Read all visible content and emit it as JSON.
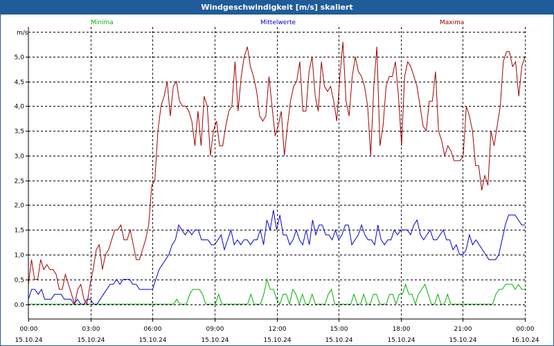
{
  "window": {
    "title": "Windgeschwindigkeit [m/s] skaliert"
  },
  "colors": {
    "titlebar": "#1f5c99",
    "minima": "#00b000",
    "mittelwerte": "#0000cc",
    "maxima": "#a00000",
    "grid": "#000000"
  },
  "chart_data": {
    "type": "line",
    "ylabel": "m/s",
    "ylim": [
      -0.3,
      5.6
    ],
    "yticks": [
      "0.0",
      "0,5",
      "1,0",
      "1,5",
      "2,0",
      "2,5",
      "3,0",
      "3,5",
      "4,0",
      "4,5",
      "5,0"
    ],
    "ytick_values": [
      0,
      0.5,
      1,
      1.5,
      2,
      2.5,
      3,
      3.5,
      4,
      4.5,
      5
    ],
    "xlim": [
      0,
      24
    ],
    "xticks": [
      {
        "time": "00:00",
        "date": "15.10.24",
        "hour": 0
      },
      {
        "time": "03:00",
        "date": "15.10.24",
        "hour": 3
      },
      {
        "time": "06:00",
        "date": "15.10.24",
        "hour": 6
      },
      {
        "time": "09:00",
        "date": "15.10.24",
        "hour": 9
      },
      {
        "time": "12:00",
        "date": "15.10.24",
        "hour": 12
      },
      {
        "time": "15:00",
        "date": "15.10.24",
        "hour": 15
      },
      {
        "time": "18:00",
        "date": "15.10.24",
        "hour": 18
      },
      {
        "time": "21:00",
        "date": "15.10.24",
        "hour": 21
      },
      {
        "time": "00:00",
        "date": "16.10.24",
        "hour": 24
      }
    ],
    "grid": true,
    "legend": "top",
    "x_step_hours": 0.1667,
    "series": [
      {
        "name": "Minima",
        "values": [
          0.0,
          0.0,
          0.0,
          0.0,
          0.0,
          0.0,
          0.0,
          0.0,
          0.0,
          0.0,
          0.0,
          0.0,
          0.0,
          0.0,
          0.0,
          0.0,
          0.0,
          0.0,
          0.0,
          0.0,
          0.0,
          0.0,
          0.0,
          0.0,
          0.0,
          0.0,
          0.0,
          0.0,
          0.0,
          0.0,
          0.0,
          0.0,
          0.0,
          0.0,
          0.0,
          0.0,
          0.0,
          0.0,
          0.0,
          0.0,
          0.0,
          0.0,
          0.0,
          0.0,
          0.0,
          0.0,
          0.1,
          0.0,
          0.0,
          0.0,
          0.2,
          0.3,
          0.3,
          0.3,
          0.2,
          0.0,
          0.0,
          0.0,
          0.0,
          0.2,
          0.0,
          0.0,
          0.0,
          0.0,
          0.0,
          0.0,
          0.0,
          0.0,
          0.0,
          0.2,
          0.0,
          0.0,
          0.0,
          0.2,
          0.5,
          0.3,
          0.3,
          0.1,
          0.0,
          0.2,
          0.2,
          0.0,
          0.3,
          0.2,
          0.0,
          0.2,
          0.0,
          0.0,
          0.2,
          0.0,
          0.0,
          0.0,
          0.0,
          0.2,
          0.3,
          0.0,
          0.0,
          0.0,
          0.0,
          0.0,
          0.0,
          0.2,
          0.0,
          0.0,
          0.2,
          0.0,
          0.0,
          0.2,
          0.2,
          0.0,
          0.0,
          0.0,
          0.2,
          0.2,
          0.0,
          0.2,
          0.2,
          0.4,
          0.2,
          0.2,
          0.0,
          0.2,
          0.3,
          0.4,
          0.2,
          0.0,
          0.0,
          0.2,
          0.0,
          0.0,
          0.2,
          0.0,
          0.0,
          0.0,
          0.0,
          0.0,
          0.0,
          0.0,
          0.0,
          0.0,
          0.0,
          0.0,
          0.0,
          0.0,
          0.0,
          0.2,
          0.3,
          0.3,
          0.4,
          0.4,
          0.4,
          0.3,
          0.4,
          0.3,
          0.3
        ]
      },
      {
        "name": "Mittelwerte",
        "values": [
          0.1,
          0.3,
          0.3,
          0.2,
          0.3,
          0.1,
          0.1,
          0.1,
          0.2,
          0.2,
          0.2,
          0.1,
          0.1,
          0.1,
          0.0,
          0.1,
          0.0,
          0.0,
          0.1,
          0.1,
          0.0,
          0.0,
          0.1,
          0.2,
          0.3,
          0.4,
          0.4,
          0.5,
          0.4,
          0.5,
          0.5,
          0.5,
          0.4,
          0.4,
          0.3,
          0.3,
          0.3,
          0.3,
          0.3,
          0.5,
          0.7,
          0.8,
          0.9,
          1.0,
          1.2,
          1.3,
          1.6,
          1.5,
          1.4,
          1.5,
          1.4,
          1.5,
          1.5,
          1.3,
          1.3,
          1.3,
          1.2,
          1.2,
          1.3,
          1.4,
          1.1,
          1.3,
          1.5,
          1.2,
          1.3,
          1.2,
          1.3,
          1.3,
          1.2,
          1.3,
          1.3,
          1.5,
          1.2,
          1.7,
          1.5,
          1.9,
          1.5,
          1.8,
          1.4,
          1.4,
          1.2,
          1.3,
          1.5,
          1.3,
          1.2,
          1.5,
          1.2,
          1.7,
          1.4,
          1.6,
          1.6,
          1.4,
          1.4,
          1.3,
          1.5,
          1.3,
          1.4,
          1.6,
          1.6,
          1.2,
          1.3,
          1.4,
          1.6,
          1.4,
          1.3,
          1.3,
          1.2,
          1.6,
          1.3,
          1.2,
          1.3,
          1.3,
          1.5,
          1.4,
          1.5,
          1.5,
          1.5,
          1.4,
          1.6,
          1.7,
          1.4,
          1.3,
          1.4,
          1.5,
          1.3,
          1.3,
          1.4,
          1.5,
          1.3,
          1.3,
          1.1,
          1.2,
          1.0,
          1.0,
          1.1,
          1.4,
          1.2,
          1.3,
          1.2,
          1.1,
          1.0,
          0.9,
          0.9,
          0.9,
          1.0,
          1.3,
          1.6,
          1.8,
          1.8,
          1.8,
          1.7,
          1.6,
          1.6
        ]
      },
      {
        "name": "Maxima",
        "values": [
          0.4,
          0.9,
          0.5,
          0.5,
          0.9,
          0.7,
          0.8,
          0.7,
          0.7,
          0.6,
          0.3,
          0.3,
          0.6,
          0.4,
          0.2,
          0.0,
          0.3,
          0.4,
          0.1,
          0.0,
          0.4,
          0.7,
          1.1,
          1.2,
          0.7,
          1.0,
          1.1,
          1.3,
          1.5,
          1.5,
          1.6,
          1.3,
          1.3,
          1.5,
          1.2,
          0.9,
          0.9,
          1.1,
          1.3,
          1.6,
          2.4,
          2.5,
          3.5,
          4.0,
          4.2,
          4.5,
          3.8,
          4.4,
          4.5,
          4.1,
          4.0,
          4.0,
          3.9,
          3.7,
          3.2,
          3.9,
          3.2,
          4.2,
          4.0,
          3.0,
          3.5,
          3.7,
          3.2,
          3.2,
          3.6,
          3.9,
          4.0,
          4.9,
          3.9,
          4.6,
          5.0,
          5.2,
          4.8,
          4.6,
          4.3,
          3.8,
          3.7,
          3.8,
          4.6,
          4.0,
          3.4,
          3.6,
          3.9,
          3.0,
          3.6,
          4.1,
          4.4,
          4.5,
          4.9,
          3.9,
          3.9,
          4.7,
          5.0,
          4.2,
          3.9,
          4.9,
          4.4,
          4.3,
          4.4,
          4.1,
          3.7,
          4.6,
          5.3,
          4.1,
          3.8,
          4.6,
          5.0,
          4.7,
          4.6,
          4.4,
          4.0,
          3.0,
          4.4,
          5.2,
          3.2,
          3.6,
          4.4,
          4.6,
          4.6,
          4.9,
          4.2,
          3.2,
          4.6,
          4.9,
          4.8,
          4.6,
          4.4,
          4.0,
          3.6,
          3.5,
          4.1,
          4.1,
          4.7,
          3.5,
          3.3,
          3.0,
          3.2,
          3.1,
          2.9,
          2.9,
          2.9,
          3.0,
          4.0,
          3.8,
          3.5,
          2.8,
          2.8,
          2.3,
          2.6,
          2.4,
          3.5,
          3.2,
          3.6,
          4.0,
          4.9,
          5.1,
          5.1,
          4.8,
          4.9,
          4.2,
          4.8,
          5.0
        ]
      }
    ]
  }
}
